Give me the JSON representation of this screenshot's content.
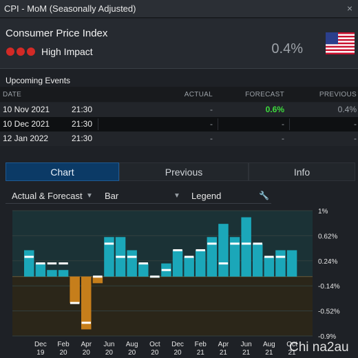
{
  "window": {
    "title": "CPI - MoM (Seasonally Adjusted)",
    "close_glyph": "×"
  },
  "header": {
    "indicator": "Consumer Price Index",
    "impact_label": "High Impact",
    "impact_color": "#d22a26",
    "value": "0.4%",
    "flag": "us-flag-icon"
  },
  "events": {
    "title": "Upcoming Events",
    "columns": [
      "DATE",
      "ACTUAL",
      "FORECAST",
      "PREVIOUS"
    ],
    "rows": [
      {
        "date": "10 Nov 2021",
        "time": "21:30",
        "actual": "-",
        "forecast": "0.6%",
        "previous": "0.4%"
      },
      {
        "date": "10 Dec 2021",
        "time": "21:30",
        "actual": "-",
        "forecast": "-",
        "previous": "-"
      },
      {
        "date": "12 Jan 2022",
        "time": "21:30",
        "actual": "-",
        "forecast": "-",
        "previous": "-"
      }
    ]
  },
  "tabs": [
    "Chart",
    "Previous",
    "Info"
  ],
  "toolbar": {
    "mode": "Actual & Forecast",
    "chart_type": "Bar",
    "legend": "Legend"
  },
  "watermark": "Chi na2au",
  "colors": {
    "positive": "#1ba7b9",
    "negative": "#c67e1b",
    "forecast_marker": "#ffffff",
    "accent": "#0b3a66"
  },
  "chart_data": {
    "type": "bar",
    "x": [
      "Nov 19",
      "Dec 19",
      "Jan 20",
      "Feb 20",
      "Mar 20",
      "Apr 20",
      "May 20",
      "Jun 20",
      "Jul 20",
      "Aug 20",
      "Sep 20",
      "Oct 20",
      "Nov 20",
      "Dec 20",
      "Jan 21",
      "Feb 21",
      "Mar 21",
      "Apr 21",
      "May 21",
      "Jun 21",
      "Jul 21",
      "Aug 21",
      "Sep 21",
      "Oct 21"
    ],
    "x_tick_labels": [
      {
        "month": "Dec",
        "year": "19"
      },
      {
        "month": "Feb",
        "year": "20"
      },
      {
        "month": "Apr",
        "year": "20"
      },
      {
        "month": "Jun",
        "year": "20"
      },
      {
        "month": "Aug",
        "year": "20"
      },
      {
        "month": "Oct",
        "year": "20"
      },
      {
        "month": "Dec",
        "year": "20"
      },
      {
        "month": "Feb",
        "year": "21"
      },
      {
        "month": "Apr",
        "year": "21"
      },
      {
        "month": "Jun",
        "year": "21"
      },
      {
        "month": "Aug",
        "year": "21"
      },
      {
        "month": "Oct",
        "year": "21"
      }
    ],
    "series": [
      {
        "name": "Actual",
        "values": [
          0.4,
          0.2,
          0.1,
          0.1,
          -0.4,
          -0.8,
          -0.1,
          0.6,
          0.6,
          0.4,
          0.2,
          0.0,
          0.2,
          0.4,
          0.3,
          0.4,
          0.6,
          0.8,
          0.6,
          0.9,
          0.5,
          0.3,
          0.4,
          0.4
        ]
      },
      {
        "name": "Forecast",
        "values": [
          0.3,
          0.2,
          0.2,
          0.2,
          -0.4,
          -0.7,
          0.0,
          0.5,
          0.3,
          0.3,
          0.2,
          0.0,
          0.1,
          0.4,
          0.3,
          0.4,
          0.5,
          0.2,
          0.5,
          0.5,
          0.5,
          0.3,
          0.3,
          null
        ]
      }
    ],
    "y_tick_labels": [
      "1%",
      "0.62%",
      "0.24%",
      "-0.14%",
      "-0.52%",
      "-0.9%"
    ],
    "ylim": [
      -0.9,
      1.0
    ],
    "grid": true
  }
}
